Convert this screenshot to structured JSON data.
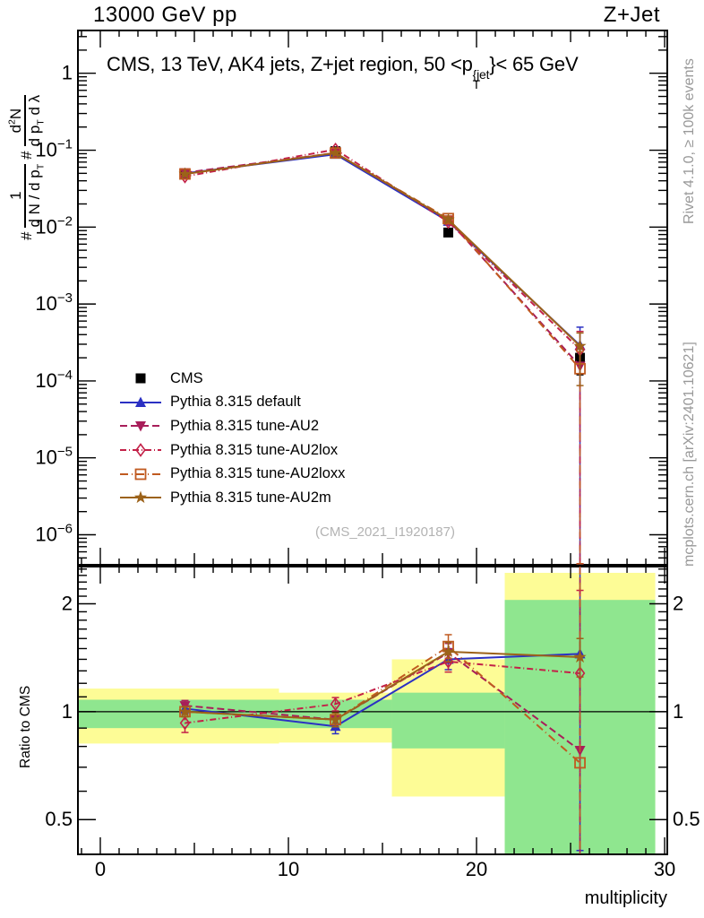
{
  "header": {
    "left": "13000 GeV pp",
    "right": "Z+Jet"
  },
  "side_notes": {
    "top_right": "Rivet 4.1.0, ≥ 100k events",
    "bottom_right": "mcplots.cern.ch [arXiv:2401.10621]"
  },
  "watermark": "(CMS_2021_I1920187)",
  "main_panel": {
    "title_pre": "CMS, 13 TeV, AK4 jets, Z+jet region, 50 <p",
    "title_sup": "{jet",
    "title_sub": "T",
    "title_post": "}< 65 GeV",
    "ylabel": {
      "hash1": "#",
      "frac1_num": "1",
      "frac1_den_pre": "d N / d p",
      "frac1_den_sub": "T",
      "hash2": "#",
      "frac2_num_pre": "d",
      "frac2_num_sup": "2",
      "frac2_num_post": "N",
      "frac2_den_pre": "d p",
      "frac2_den_sub": "T",
      "frac2_den_post": " d λ"
    }
  },
  "ratio_panel": {
    "ylabel": "Ratio to CMS"
  },
  "xaxis": {
    "label": "multiplicity"
  },
  "chart_data": {
    "type": "line",
    "title": "CMS, 13 TeV, AK4 jets, Z+jet region, 50 <p_T^{jet} < 65 GeV",
    "xlabel": "multiplicity",
    "ylabel": "# 1/(dN/dp_T) # d^2N/(dp_T dlambda)",
    "x": [
      4.5,
      12.5,
      18.5,
      25.5
    ],
    "xlim": [
      -1.19,
      30.14
    ],
    "xticks": [
      0,
      10,
      20,
      30
    ],
    "main": {
      "ylog": true,
      "ylim": [
        4.07e-07,
        3.6
      ],
      "ytick_exponents": [
        0,
        -1,
        -2,
        -3,
        -4,
        -5,
        -6
      ]
    },
    "ratio": {
      "ylog": true,
      "ylim": [
        0.4,
        2.54
      ],
      "yticks": [
        "0.5",
        "1",
        "2"
      ],
      "reference_line": 1
    },
    "legend_position": "middle-left",
    "grid": false,
    "series": [
      {
        "label": "CMS",
        "color": "#000000",
        "line": "none",
        "dash": null,
        "marker": "square",
        "values": [
          0.049,
          0.097,
          0.0085,
          0.0002
        ],
        "err_lo": [
          0.0465,
          0.0935,
          0.0078,
          0.00012
        ],
        "err_hi": [
          0.0515,
          0.1005,
          0.0092,
          0.00029
        ],
        "ratio": null,
        "ratio_err_lo": null,
        "ratio_err_hi": null
      },
      {
        "label": "Pythia 8.315 default",
        "color": "#2b30c3",
        "line": "solid",
        "dash": null,
        "marker": "triangle-up",
        "values": [
          0.05,
          0.0885,
          0.0119,
          0.00029
        ],
        "err_lo": [
          0.0485,
          0.0855,
          0.0111,
          4.2e-07
        ],
        "err_hi": [
          0.0515,
          0.0915,
          0.0127,
          0.0005
        ],
        "ratio": [
          1.02,
          0.91,
          1.4,
          1.45
        ],
        "ratio_err_lo": [
          0.985,
          0.868,
          1.31,
          0.41
        ],
        "ratio_err_hi": [
          1.055,
          0.952,
          1.5,
          2.6
        ]
      },
      {
        "label": "Pythia 8.315 tune-AU2",
        "color": "#a81e5a",
        "line": "dashed",
        "dash": "8,4",
        "marker": "triangle-down",
        "values": [
          0.051,
          0.092,
          0.0124,
          0.000156
        ],
        "err_lo": [
          0.0495,
          0.089,
          0.0116,
          4.2e-07
        ],
        "err_hi": [
          0.0525,
          0.095,
          0.0132,
          0.00026
        ],
        "ratio": [
          1.04,
          0.95,
          1.46,
          0.78
        ],
        "ratio_err_lo": [
          1.005,
          0.908,
          1.37,
          0.36
        ],
        "ratio_err_hi": [
          1.075,
          0.992,
          1.55,
          2.6
        ]
      },
      {
        "label": "Pythia 8.315 tune-AU2lox",
        "color": "#c32148",
        "line": "dash-dot",
        "dash": "7,3,1,3",
        "marker": "diamond-open",
        "values": [
          0.0455,
          0.102,
          0.0117,
          0.000256
        ],
        "err_lo": [
          0.0425,
          0.0975,
          0.0109,
          4.2e-07
        ],
        "err_hi": [
          0.0485,
          0.1065,
          0.0125,
          0.00044
        ],
        "ratio": [
          0.93,
          1.05,
          1.38,
          1.28
        ],
        "ratio_err_lo": [
          0.875,
          1.005,
          1.29,
          0.36
        ],
        "ratio_err_hi": [
          0.985,
          1.095,
          1.47,
          2.18
        ]
      },
      {
        "label": "Pythia 8.315 tune-AU2loxx",
        "color": "#c05a20",
        "line": "dash-dot",
        "dash": "9,4,1,4",
        "marker": "square-open",
        "values": [
          0.049,
          0.092,
          0.0129,
          0.000144
        ],
        "err_lo": [
          0.0475,
          0.089,
          0.0119,
          4.2e-07
        ],
        "err_hi": [
          0.0505,
          0.095,
          0.0139,
          0.00024
        ],
        "ratio": [
          1.0,
          0.95,
          1.52,
          0.72
        ],
        "ratio_err_lo": [
          0.968,
          0.908,
          1.41,
          0.36
        ],
        "ratio_err_hi": [
          1.032,
          0.992,
          1.64,
          2.6
        ]
      },
      {
        "label": "Pythia 8.315 tune-AU2m",
        "color": "#9c6219",
        "line": "solid",
        "dash": null,
        "marker": "star",
        "values": [
          0.049,
          0.092,
          0.0125,
          0.000284
        ],
        "err_lo": [
          0.0475,
          0.089,
          0.0117,
          8.7e-05
        ],
        "err_hi": [
          0.0505,
          0.095,
          0.0133,
          0.00042
        ],
        "ratio": [
          1.0,
          0.95,
          1.47,
          1.42
        ],
        "ratio_err_lo": [
          0.968,
          0.908,
          1.38,
          1.25
        ],
        "ratio_err_hi": [
          1.032,
          0.992,
          1.56,
          1.6
        ]
      }
    ],
    "bands": [
      {
        "x0": -1.19,
        "x1": 9.5,
        "yellow": [
          0.815,
          1.16
        ],
        "green": [
          0.9,
          1.08
        ]
      },
      {
        "x0": 9.5,
        "x1": 15.5,
        "yellow": [
          0.82,
          1.13
        ],
        "green": [
          0.9,
          1.08
        ]
      },
      {
        "x0": 15.5,
        "x1": 21.5,
        "yellow": [
          0.58,
          1.4
        ],
        "green": [
          0.79,
          1.13
        ]
      },
      {
        "x0": 21.5,
        "x1": 29.5,
        "yellow": [
          0.33,
          2.44
        ],
        "green": [
          0.33,
          2.05
        ]
      }
    ],
    "band_colors": {
      "yellow": "#fdfc96",
      "green": "#8fe68f"
    }
  }
}
